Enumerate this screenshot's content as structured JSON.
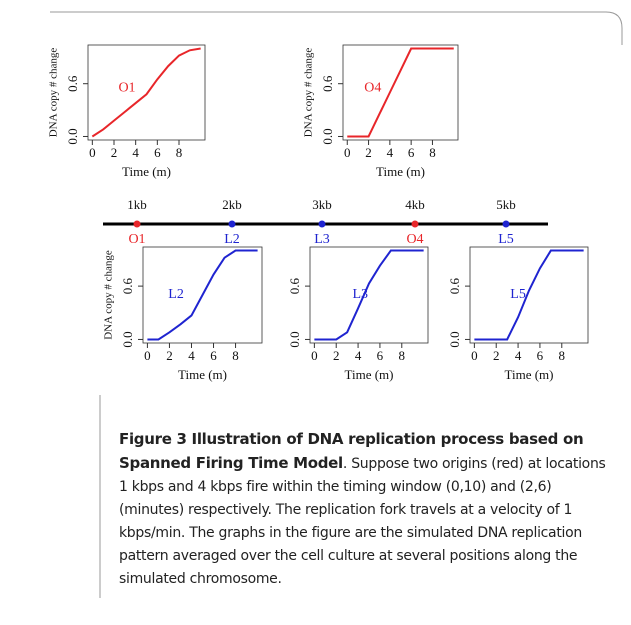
{
  "chart_data": [
    {
      "type": "line",
      "label": "O1",
      "xlabel": "Time (m)",
      "ylabel": "DNA copy # change",
      "color": "#e8262a",
      "x": [
        0,
        1,
        2,
        3,
        4,
        5,
        6,
        7,
        8,
        9,
        10
      ],
      "values": [
        0,
        0.08,
        0.18,
        0.28,
        0.38,
        0.48,
        0.65,
        0.8,
        0.92,
        0.98,
        1.0
      ],
      "xlim": [
        -0.4,
        10.4
      ],
      "ylim": [
        -0.04,
        1.04
      ],
      "xticks": [
        0,
        2,
        4,
        6,
        8
      ],
      "yticks": [
        {
          "value": 0,
          "label": "0.0"
        },
        0.6
      ]
    },
    {
      "type": "line",
      "label": "O4",
      "xlabel": "Time (m)",
      "ylabel": "DNA copy # change",
      "color": "#e8262a",
      "x": [
        0,
        1,
        2,
        3,
        4,
        5,
        6,
        7,
        8,
        9,
        10
      ],
      "values": [
        0,
        0,
        0,
        0.25,
        0.5,
        0.75,
        1.0,
        1.0,
        1.0,
        1.0,
        1.0
      ],
      "xlim": [
        -0.4,
        10.4
      ],
      "ylim": [
        -0.04,
        1.04
      ],
      "xticks": [
        0,
        2,
        4,
        6,
        8
      ],
      "yticks": [
        {
          "value": 0,
          "label": "0.0"
        },
        0.6
      ]
    },
    {
      "type": "line",
      "label": "L2",
      "xlabel": "Time (m)",
      "ylabel": "DNA copy # change",
      "color": "#1f24d0",
      "x": [
        0,
        1,
        2,
        3,
        4,
        5,
        6,
        7,
        8,
        9,
        10
      ],
      "values": [
        0,
        0,
        0.08,
        0.17,
        0.27,
        0.5,
        0.73,
        0.92,
        1.0,
        1.0,
        1.0
      ],
      "xlim": [
        -0.4,
        10.4
      ],
      "ylim": [
        -0.04,
        1.04
      ],
      "xticks": [
        0,
        2,
        4,
        6,
        8
      ],
      "yticks": [
        {
          "value": 0,
          "label": "0.0"
        },
        0.6
      ]
    },
    {
      "type": "line",
      "label": "L3",
      "xlabel": "Time (m)",
      "color": "#1f24d0",
      "x": [
        0,
        1,
        2,
        3,
        4,
        5,
        6,
        7,
        8,
        9,
        10
      ],
      "values": [
        0,
        0,
        0,
        0.08,
        0.35,
        0.63,
        0.83,
        1.0,
        1.0,
        1.0,
        1.0
      ],
      "xlim": [
        -0.4,
        10.4
      ],
      "ylim": [
        -0.04,
        1.04
      ],
      "xticks": [
        0,
        2,
        4,
        6,
        8
      ],
      "yticks": [
        {
          "value": 0,
          "label": "0.0"
        },
        0.6
      ]
    },
    {
      "type": "line",
      "label": "L5",
      "xlabel": "Time (m)",
      "color": "#1f24d0",
      "x": [
        0,
        1,
        2,
        3,
        4,
        5,
        6,
        7,
        8,
        9,
        10
      ],
      "values": [
        0,
        0,
        0,
        0,
        0.25,
        0.55,
        0.8,
        1.0,
        1.0,
        1.0,
        1.0
      ],
      "xlim": [
        -0.4,
        10.4
      ],
      "ylim": [
        -0.04,
        1.04
      ],
      "xticks": [
        0,
        2,
        4,
        6,
        8
      ],
      "yticks": [
        {
          "value": 0,
          "label": "0.0"
        },
        0.6
      ]
    }
  ],
  "chromosome": {
    "sites": [
      {
        "position": "1kb",
        "name": "O1",
        "color": "#e8262a"
      },
      {
        "position": "2kb",
        "name": "L2",
        "color": "#1f24d0"
      },
      {
        "position": "3kb",
        "name": "L3",
        "color": "#1f24d0"
      },
      {
        "position": "4kb",
        "name": "O4",
        "color": "#e8262a"
      },
      {
        "position": "5kb",
        "name": "L5",
        "color": "#1f24d0"
      }
    ]
  },
  "caption": {
    "title": "Figure 3 Illustration of DNA replication process based on Spanned Firing Time Model",
    "text": ". Suppose two origins (red) at locations 1 kbps and 4 kbps fire within the timing window (0,10) and (2,6) (minutes) respectively. The replication fork travels at a velocity of 1 kbps/min. The graphs in the figure are the simulated DNA replication pattern averaged over the cell culture at several positions along the simulated chromosome."
  }
}
